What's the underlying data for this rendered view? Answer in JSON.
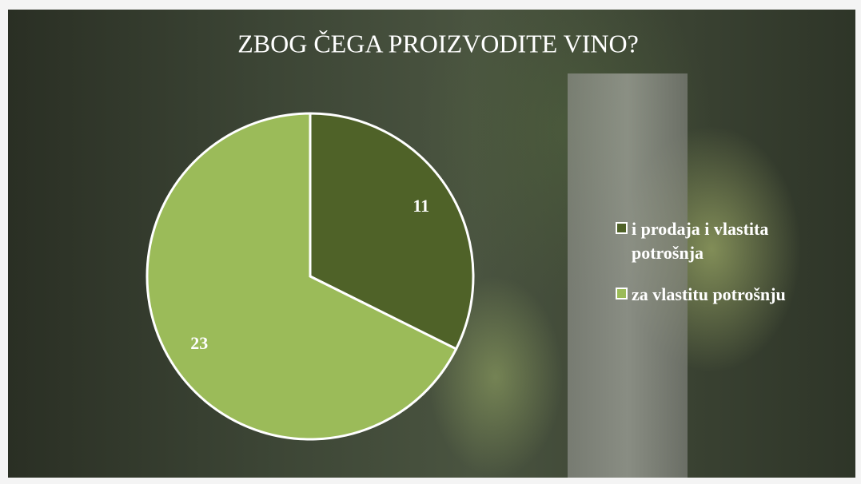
{
  "chart_data": {
    "type": "pie",
    "title": "ZBOG ČEGA PROIZVODITE VINO?",
    "categories": [
      "i prodaja i vlastita potrošnja",
      "za vlastitu potrošnju"
    ],
    "values": [
      11,
      23
    ],
    "colors": [
      "#4f6228",
      "#9bbb59"
    ],
    "legend": "right"
  }
}
